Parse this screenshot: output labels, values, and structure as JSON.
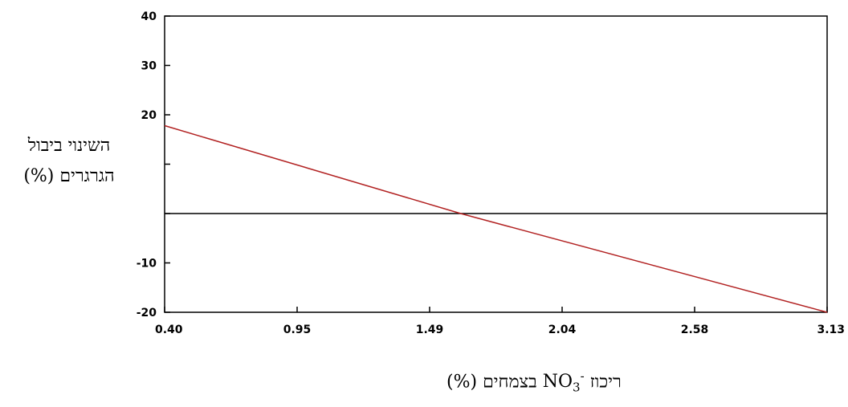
{
  "chart_data": {
    "type": "line",
    "ylabel_line1": "השינוי ביבול",
    "ylabel_line2": "הגרגרים (%)",
    "xlabel": {
      "prefix": "ריכוז",
      "sup": "-",
      "base": "NO",
      "sub": "3",
      "suffix": "בצמחים  (%)"
    },
    "x_ticks": [
      "0.40",
      "0.95",
      "1.49",
      "2.04",
      "2.58",
      "3.13"
    ],
    "y_ticks": [
      {
        "value": 40,
        "label": "40"
      },
      {
        "value": 30,
        "label": "30"
      },
      {
        "value": 20,
        "label": "20"
      },
      {
        "value": 10,
        "label": ""
      },
      {
        "value": 0,
        "label": ""
      },
      {
        "value": -10,
        "label": "-10"
      },
      {
        "value": -20,
        "label": "-20"
      }
    ],
    "xlim": [
      0.4,
      3.13
    ],
    "ylim": [
      -20,
      40
    ],
    "grid": false,
    "reference_line_y": 0,
    "series": [
      {
        "color": "#b22222",
        "x": [
          0.4,
          1.62,
          3.13
        ],
        "y": [
          17.8,
          0,
          -20
        ]
      }
    ]
  }
}
